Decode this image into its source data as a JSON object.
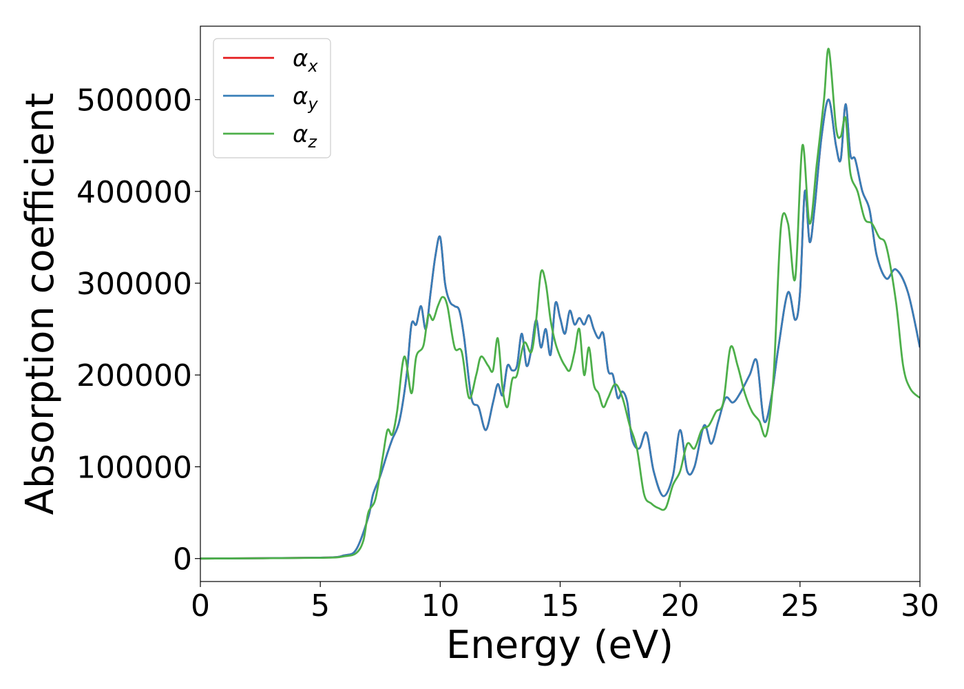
{
  "chart_data": {
    "type": "line",
    "title": "",
    "xlabel": "Energy (eV)",
    "ylabel": "Absorption coefficient",
    "xlim": [
      0,
      30
    ],
    "ylim": [
      -25000,
      580000
    ],
    "xticks": [
      0,
      5,
      10,
      15,
      20,
      25,
      30
    ],
    "yticks": [
      0,
      100000,
      200000,
      300000,
      400000,
      500000
    ],
    "grid": false,
    "legend_position": "top-left",
    "series": [
      {
        "name": "αx",
        "symbol": "α",
        "subscript": "x",
        "color": "#e41a1c",
        "x": [
          0,
          5,
          6,
          6.5,
          7,
          7.2,
          7.5,
          7.8,
          8,
          8.3,
          8.6,
          8.8,
          9,
          9.2,
          9.4,
          9.6,
          9.8,
          10,
          10.2,
          10.4,
          10.6,
          10.8,
          11,
          11.3,
          11.6,
          11.9,
          12.2,
          12.4,
          12.6,
          12.8,
          13,
          13.2,
          13.4,
          13.6,
          13.8,
          14,
          14.2,
          14.4,
          14.6,
          14.8,
          15,
          15.2,
          15.4,
          15.6,
          15.8,
          16,
          16.2,
          16.4,
          16.6,
          16.8,
          17,
          17.2,
          17.4,
          17.6,
          17.8,
          18,
          18.3,
          18.6,
          18.9,
          19.3,
          19.7,
          20,
          20.3,
          20.6,
          21,
          21.3,
          21.6,
          21.9,
          22.2,
          22.5,
          22.9,
          23.2,
          23.5,
          23.8,
          24.1,
          24.5,
          24.8,
          25,
          25.2,
          25.4,
          25.6,
          25.9,
          26.2,
          26.5,
          26.7,
          26.9,
          27.1,
          27.3,
          27.6,
          27.9,
          28.2,
          28.6,
          29,
          29.5,
          30
        ],
        "y": [
          0,
          1000,
          3500,
          10000,
          45000,
          70000,
          90000,
          115000,
          130000,
          150000,
          200000,
          255000,
          255000,
          275000,
          250000,
          290000,
          330000,
          350000,
          300000,
          280000,
          275000,
          270000,
          240000,
          175000,
          165000,
          140000,
          170000,
          190000,
          178000,
          210000,
          205000,
          210000,
          245000,
          210000,
          228000,
          260000,
          230000,
          250000,
          222000,
          278000,
          262000,
          245000,
          270000,
          255000,
          262000,
          255000,
          265000,
          250000,
          240000,
          245000,
          205000,
          200000,
          175000,
          182000,
          170000,
          130000,
          120000,
          137000,
          95000,
          68000,
          90000,
          140000,
          95000,
          100000,
          145000,
          125000,
          150000,
          175000,
          170000,
          180000,
          200000,
          215000,
          150000,
          175000,
          230000,
          290000,
          260000,
          290000,
          400000,
          345000,
          380000,
          460000,
          500000,
          450000,
          435000,
          495000,
          440000,
          435000,
          400000,
          380000,
          330000,
          305000,
          315000,
          290000,
          230000
        ]
      },
      {
        "name": "αy",
        "symbol": "α",
        "subscript": "y",
        "color": "#377eb8",
        "x": [
          0,
          5,
          6,
          6.5,
          7,
          7.2,
          7.5,
          7.8,
          8,
          8.3,
          8.6,
          8.8,
          9,
          9.2,
          9.4,
          9.6,
          9.8,
          10,
          10.2,
          10.4,
          10.6,
          10.8,
          11,
          11.3,
          11.6,
          11.9,
          12.2,
          12.4,
          12.6,
          12.8,
          13,
          13.2,
          13.4,
          13.6,
          13.8,
          14,
          14.2,
          14.4,
          14.6,
          14.8,
          15,
          15.2,
          15.4,
          15.6,
          15.8,
          16,
          16.2,
          16.4,
          16.6,
          16.8,
          17,
          17.2,
          17.4,
          17.6,
          17.8,
          18,
          18.3,
          18.6,
          18.9,
          19.3,
          19.7,
          20,
          20.3,
          20.6,
          21,
          21.3,
          21.6,
          21.9,
          22.2,
          22.5,
          22.9,
          23.2,
          23.5,
          23.8,
          24.1,
          24.5,
          24.8,
          25,
          25.2,
          25.4,
          25.6,
          25.9,
          26.2,
          26.5,
          26.7,
          26.9,
          27.1,
          27.3,
          27.6,
          27.9,
          28.2,
          28.6,
          29,
          29.5,
          30
        ],
        "y": [
          0,
          1000,
          3500,
          10000,
          45000,
          70000,
          90000,
          115000,
          130000,
          150000,
          200000,
          255000,
          255000,
          275000,
          250000,
          290000,
          330000,
          350000,
          300000,
          280000,
          275000,
          270000,
          240000,
          175000,
          165000,
          140000,
          170000,
          190000,
          178000,
          210000,
          205000,
          210000,
          245000,
          210000,
          228000,
          260000,
          230000,
          250000,
          222000,
          278000,
          262000,
          245000,
          270000,
          255000,
          262000,
          255000,
          265000,
          250000,
          240000,
          245000,
          205000,
          200000,
          175000,
          182000,
          170000,
          130000,
          120000,
          137000,
          95000,
          68000,
          90000,
          140000,
          95000,
          100000,
          145000,
          125000,
          150000,
          175000,
          170000,
          180000,
          200000,
          215000,
          150000,
          175000,
          230000,
          290000,
          260000,
          290000,
          400000,
          345000,
          380000,
          460000,
          500000,
          450000,
          435000,
          495000,
          440000,
          435000,
          400000,
          380000,
          330000,
          305000,
          315000,
          290000,
          230000
        ]
      },
      {
        "name": "αz",
        "symbol": "α",
        "subscript": "z",
        "color": "#4daf4a",
        "x": [
          0,
          5,
          6,
          6.5,
          6.8,
          7,
          7.3,
          7.6,
          7.8,
          8,
          8.2,
          8.5,
          8.8,
          9,
          9.3,
          9.5,
          9.7,
          9.9,
          10.1,
          10.3,
          10.6,
          10.9,
          11.2,
          11.5,
          11.7,
          12,
          12.2,
          12.4,
          12.6,
          12.8,
          13,
          13.2,
          13.5,
          13.8,
          14,
          14.2,
          14.4,
          14.6,
          14.8,
          15,
          15.2,
          15.4,
          15.6,
          15.8,
          16,
          16.2,
          16.4,
          16.6,
          16.8,
          17,
          17.3,
          17.6,
          17.9,
          18.2,
          18.5,
          18.8,
          19.1,
          19.4,
          19.7,
          20,
          20.3,
          20.6,
          20.9,
          21.2,
          21.5,
          21.8,
          22.1,
          22.4,
          22.7,
          23,
          23.3,
          23.6,
          23.9,
          24.2,
          24.5,
          24.8,
          25.1,
          25.4,
          25.7,
          26,
          26.2,
          26.5,
          26.7,
          26.9,
          27.1,
          27.4,
          27.7,
          28,
          28.3,
          28.6,
          29,
          29.3,
          29.6,
          30
        ],
        "y": [
          0,
          800,
          2500,
          6000,
          20000,
          50000,
          65000,
          110000,
          140000,
          135000,
          160000,
          220000,
          180000,
          220000,
          232000,
          265000,
          260000,
          275000,
          285000,
          275000,
          230000,
          225000,
          175000,
          200000,
          220000,
          210000,
          205000,
          240000,
          185000,
          165000,
          195000,
          200000,
          235000,
          225000,
          260000,
          312000,
          300000,
          260000,
          235000,
          220000,
          210000,
          205000,
          225000,
          250000,
          200000,
          230000,
          190000,
          180000,
          165000,
          175000,
          190000,
          175000,
          145000,
          120000,
          70000,
          60000,
          55000,
          55000,
          80000,
          95000,
          125000,
          120000,
          140000,
          145000,
          160000,
          170000,
          230000,
          210000,
          180000,
          160000,
          150000,
          135000,
          200000,
          360000,
          365000,
          305000,
          450000,
          365000,
          430000,
          500000,
          555000,
          470000,
          460000,
          480000,
          420000,
          400000,
          370000,
          365000,
          350000,
          340000,
          280000,
          210000,
          185000,
          175000
        ]
      }
    ]
  }
}
